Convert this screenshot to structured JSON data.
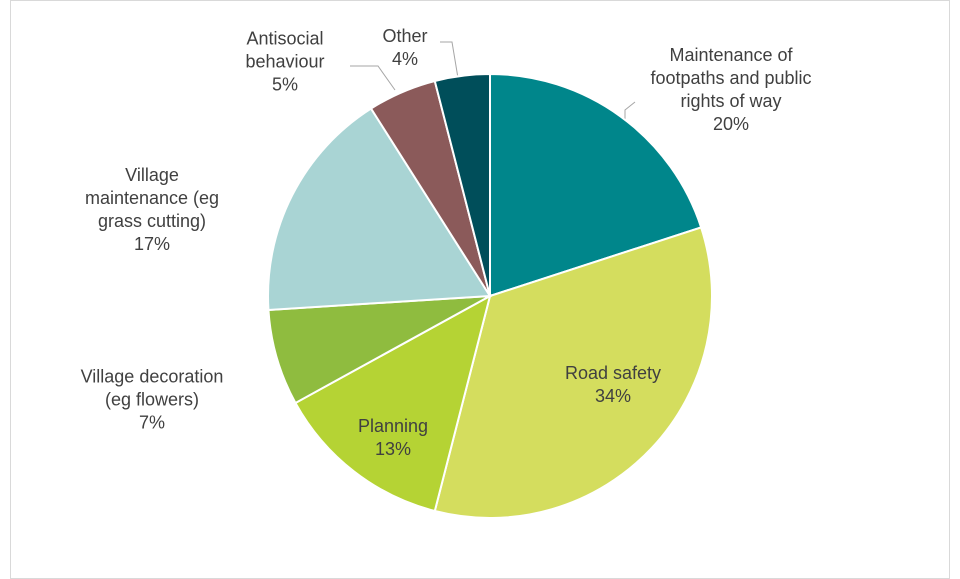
{
  "chart_data": {
    "type": "pie",
    "categories": [
      "Maintenance of footpaths and public rights of way",
      "Road safety",
      "Planning",
      "Village decoration (eg flowers)",
      "Village maintenance (eg grass cutting)",
      "Antisocial behaviour",
      "Other"
    ],
    "values": [
      20,
      34,
      13,
      7,
      17,
      5,
      4
    ],
    "value_labels": [
      "20%",
      "34%",
      "13%",
      "7%",
      "17%",
      "5%",
      "4%"
    ],
    "colors": [
      "#00868b",
      "#d4dd5e",
      "#b5d334",
      "#8fbc3f",
      "#a9d4d4",
      "#8b5a5a",
      "#004e5a"
    ]
  }
}
